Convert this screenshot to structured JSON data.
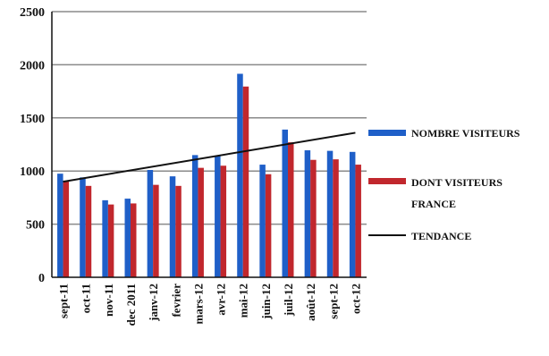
{
  "chart_data": {
    "type": "bar",
    "categories": [
      "sept-11",
      "oct-11",
      "nov-11",
      "dec 2011",
      "janv-12",
      "fevrier",
      "mars-12",
      "avr-12",
      "mai-12",
      "juin-12",
      "juil-12",
      "août-12",
      "sept-12",
      "oct-12"
    ],
    "series": [
      {
        "name": "NOMBRE VISITEURS",
        "color": "#1f5fc8",
        "values": [
          975,
          940,
          725,
          740,
          1010,
          950,
          1150,
          1145,
          1915,
          1060,
          1390,
          1195,
          1190,
          1180
        ]
      },
      {
        "name": "DONT VISITEURS FRANCE",
        "color": "#c1272d",
        "values": [
          910,
          860,
          685,
          695,
          870,
          860,
          1030,
          1050,
          1795,
          970,
          1270,
          1105,
          1110,
          1060
        ]
      }
    ],
    "trend": {
      "name": "TENDANCE",
      "color": "#111111",
      "start": 900,
      "end": 1360
    },
    "ylim": [
      0,
      2500
    ],
    "yticks": [
      0,
      500,
      1000,
      1500,
      2000,
      2500
    ],
    "grid": true,
    "legend": "right",
    "title": "",
    "xlabel": "",
    "ylabel": ""
  },
  "legend": {
    "item1": "NOMBRE VISITEURS",
    "item2_line1": "DONT VISITEURS",
    "item2_line2": "FRANCE",
    "item3": "TENDANCE"
  }
}
